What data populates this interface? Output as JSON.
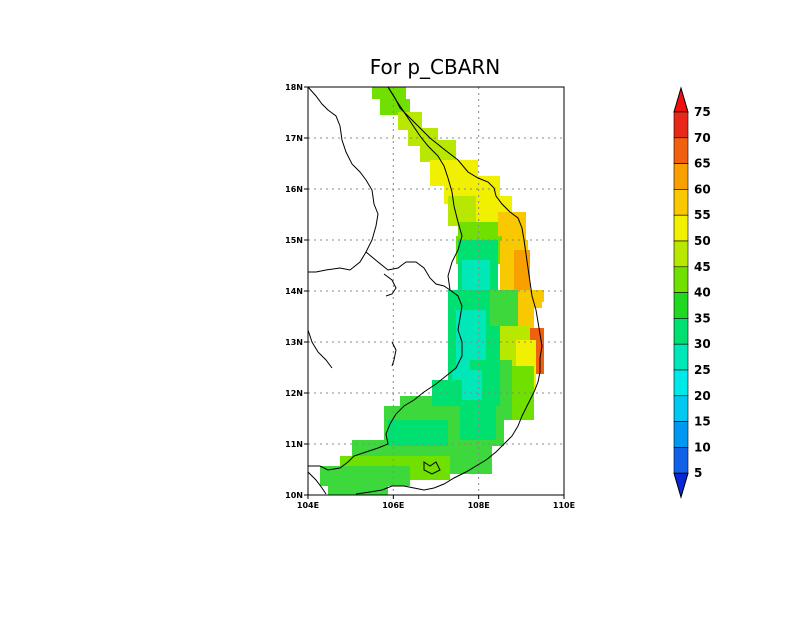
{
  "title": "For p_CBARN",
  "map": {
    "lon_range": [
      104,
      110
    ],
    "lat_range": [
      10,
      18
    ],
    "x_ticks": [
      "104E",
      "106E",
      "108E",
      "110E"
    ],
    "y_ticks": [
      "18N",
      "17N",
      "16N",
      "15N",
      "14N",
      "13N",
      "12N",
      "11N",
      "10N"
    ],
    "grid": "dotted",
    "grid_lons": [
      106,
      108
    ],
    "grid_lats": [
      11,
      12,
      13,
      14,
      15,
      16,
      17
    ]
  },
  "colorbar": {
    "labels": [
      "75",
      "70",
      "65",
      "60",
      "55",
      "50",
      "45",
      "40",
      "35",
      "30",
      "25",
      "20",
      "15",
      "10",
      "5"
    ],
    "colors": [
      "#e8281a",
      "#f06010",
      "#f8a000",
      "#f8c800",
      "#f0f000",
      "#b8e800",
      "#70e000",
      "#20d820",
      "#00e070",
      "#00e8b8",
      "#00e8e8",
      "#00c8f0",
      "#0098f0",
      "#1060e8",
      "#1030e0"
    ],
    "low_color": "#0828d8",
    "high_color": "#f01010"
  }
}
